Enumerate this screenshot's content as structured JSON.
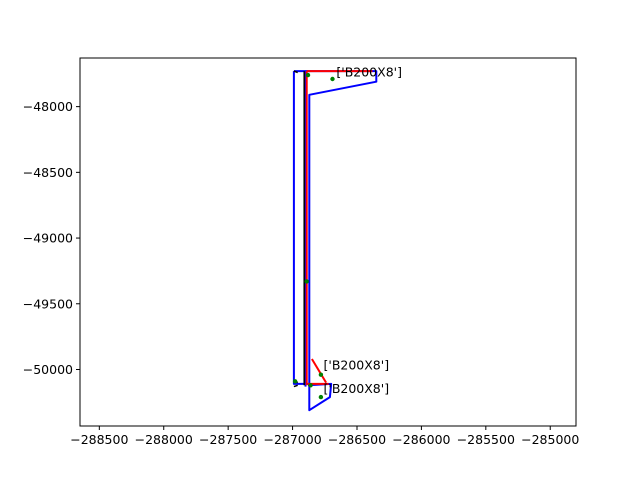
{
  "chart_data": {
    "type": "line",
    "title": "",
    "xlabel": "",
    "ylabel": "",
    "xlim": [
      -288650,
      -284800
    ],
    "ylim": [
      -50430,
      -47630
    ],
    "x_ticks": [
      -288500,
      -288000,
      -287500,
      -287000,
      -286500,
      -286000,
      -285500,
      -285000
    ],
    "x_tick_labels": [
      "−288500",
      "−288000",
      "−287500",
      "−287000",
      "−286500",
      "−286000",
      "−285500",
      "−285000"
    ],
    "y_ticks": [
      -48000,
      -48500,
      -49000,
      -49500,
      -50000
    ],
    "y_tick_labels": [
      "−48000",
      "−48500",
      "−49000",
      "−49500",
      "−50000"
    ],
    "grid": false,
    "colors": {
      "outline": "#0000ff",
      "centerline": "#ff0000",
      "black": "#000000",
      "point": "#008000"
    },
    "series": [
      {
        "style": "outline",
        "segments": [
          [
            [
              -286990,
              -47730
            ],
            [
              -286350,
              -47730
            ],
            [
              -286350,
              -47810
            ],
            [
              -286870,
              -47910
            ],
            [
              -286870,
              -50110
            ],
            [
              -286990,
              -50110
            ],
            [
              -286990,
              -47730
            ]
          ],
          [
            [
              -286900,
              -47730
            ],
            [
              -286900,
              -50130
            ]
          ],
          [
            [
              -286880,
              -50120
            ],
            [
              -286700,
              -50110
            ],
            [
              -286710,
              -50210
            ],
            [
              -286870,
              -50310
            ],
            [
              -286870,
              -50120
            ]
          ]
        ]
      },
      {
        "style": "centerline",
        "segments": [
          [
            [
              -286890,
              -47730
            ],
            [
              -286380,
              -47730
            ]
          ],
          [
            [
              -286890,
              -47730
            ],
            [
              -286890,
              -50120
            ]
          ],
          [
            [
              -286850,
              -49920
            ],
            [
              -286740,
              -50100
            ]
          ],
          [
            [
              -286880,
              -50110
            ],
            [
              -286720,
              -50110
            ]
          ]
        ]
      },
      {
        "style": "black",
        "segments": [
          [
            [
              -286990,
              -47730
            ],
            [
              -286960,
              -47740
            ]
          ],
          [
            [
              -286990,
              -50080
            ],
            [
              -286960,
              -50100
            ]
          ],
          [
            [
              -286990,
              -50130
            ],
            [
              -286960,
              -50120
            ]
          ],
          [
            [
              -286910,
              -47730
            ],
            [
              -286910,
              -50120
            ]
          ]
        ]
      }
    ],
    "markers": [
      {
        "x": -286690,
        "y": -47790
      },
      {
        "x": -286780,
        "y": -50040
      },
      {
        "x": -286780,
        "y": -50210
      },
      {
        "x": -286880,
        "y": -47760
      },
      {
        "x": -286890,
        "y": -49330
      },
      {
        "x": -286980,
        "y": -50090
      },
      {
        "x": -286860,
        "y": -50120
      }
    ],
    "annotations": [
      {
        "text": "['B200X8']",
        "x": -286660,
        "y": -47770
      },
      {
        "text": "['B200X8']",
        "x": -286760,
        "y": -50000
      },
      {
        "text": "['B200X8']",
        "x": -286760,
        "y": -50180
      }
    ]
  }
}
